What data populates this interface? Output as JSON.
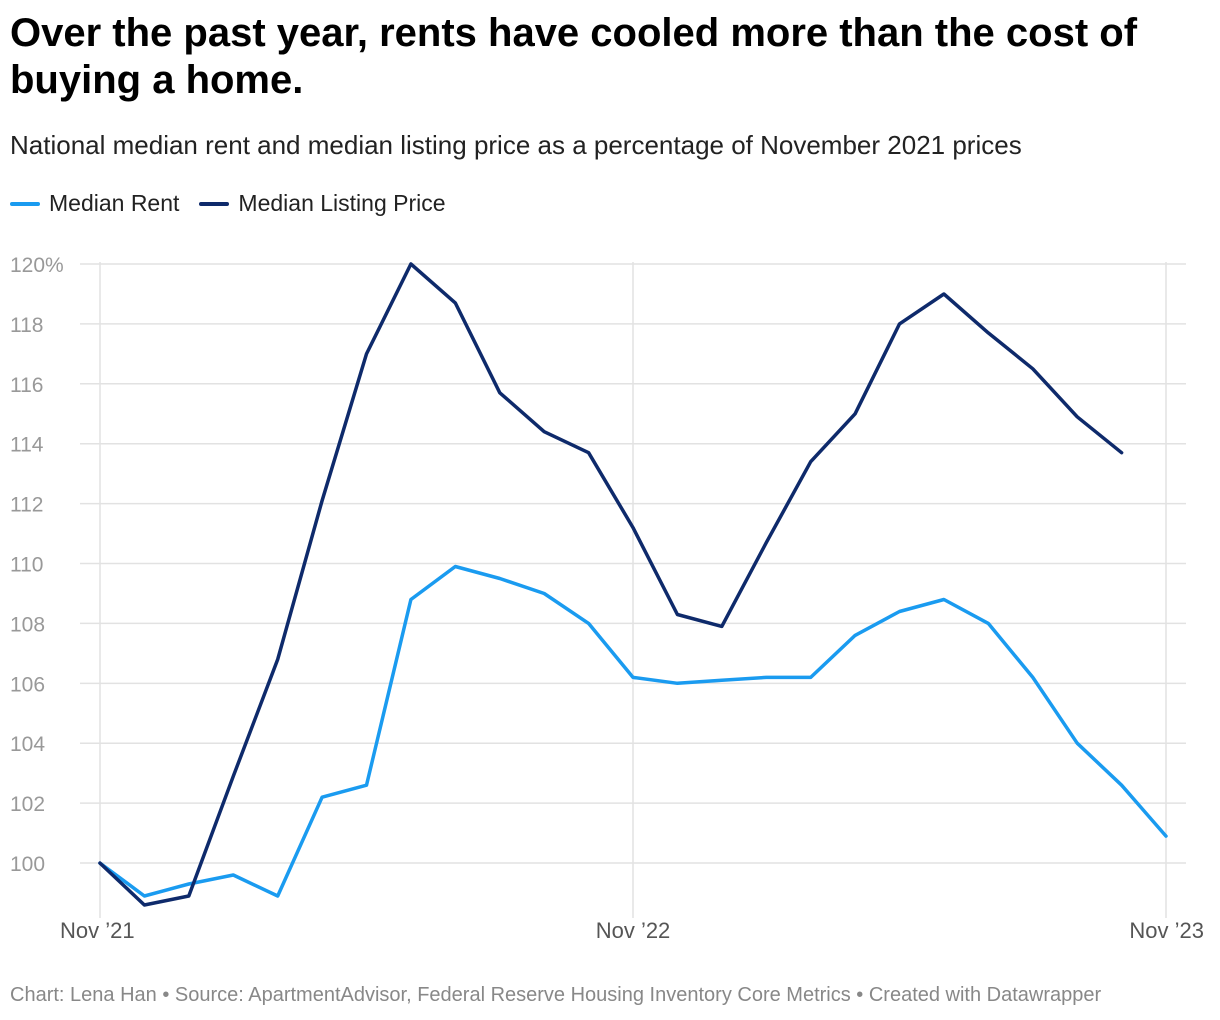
{
  "title": "Over the past year, rents have cooled more than the cost of buying a home.",
  "subtitle": "National median rent and median listing price as a percentage of November 2021 prices",
  "footer": "Chart: Lena Han • Source: ApartmentAdvisor, Federal Reserve Housing Inventory Core Metrics • Created with Datawrapper",
  "chart_data": {
    "type": "line",
    "title": "Over the past year, rents have cooled more than the cost of buying a home.",
    "subtitle": "National median rent and median listing price as a percentage of November 2021 prices",
    "xlabel": "",
    "ylabel": "",
    "ylim": [
      98.7,
      120
    ],
    "y_ticks": [
      {
        "value": 100,
        "label": "100"
      },
      {
        "value": 102,
        "label": "102"
      },
      {
        "value": 104,
        "label": "104"
      },
      {
        "value": 106,
        "label": "106"
      },
      {
        "value": 108,
        "label": "108"
      },
      {
        "value": 110,
        "label": "110"
      },
      {
        "value": 112,
        "label": "112"
      },
      {
        "value": 114,
        "label": "114"
      },
      {
        "value": 116,
        "label": "116"
      },
      {
        "value": 118,
        "label": "118"
      },
      {
        "value": 120,
        "label": "120%"
      }
    ],
    "x_ticks": [
      {
        "index": 0,
        "label": "Nov ’21",
        "anchor": "start"
      },
      {
        "index": 12,
        "label": "Nov ’22",
        "anchor": "middle"
      },
      {
        "index": 24,
        "label": "Nov ’23",
        "anchor": "end"
      }
    ],
    "x_count": 25,
    "grid": true,
    "legend_position": "top-left",
    "series": [
      {
        "name": "Median Rent",
        "color": "#1a9bf0",
        "values": [
          100.0,
          98.9,
          99.3,
          99.6,
          98.9,
          102.2,
          102.6,
          108.8,
          109.9,
          109.5,
          109.0,
          108.0,
          106.2,
          106.0,
          106.1,
          106.2,
          106.2,
          107.6,
          108.4,
          108.8,
          108.0,
          106.2,
          104.0,
          102.6,
          100.9
        ]
      },
      {
        "name": "Median Listing Price",
        "color": "#0e2a6b",
        "values": [
          100.0,
          98.6,
          98.9,
          102.9,
          106.8,
          112.1,
          117.0,
          120.0,
          118.7,
          115.7,
          114.4,
          113.7,
          111.2,
          108.3,
          107.9,
          110.7,
          113.4,
          115.0,
          118.0,
          119.0,
          117.7,
          116.5,
          114.9,
          113.7,
          null
        ]
      }
    ]
  }
}
